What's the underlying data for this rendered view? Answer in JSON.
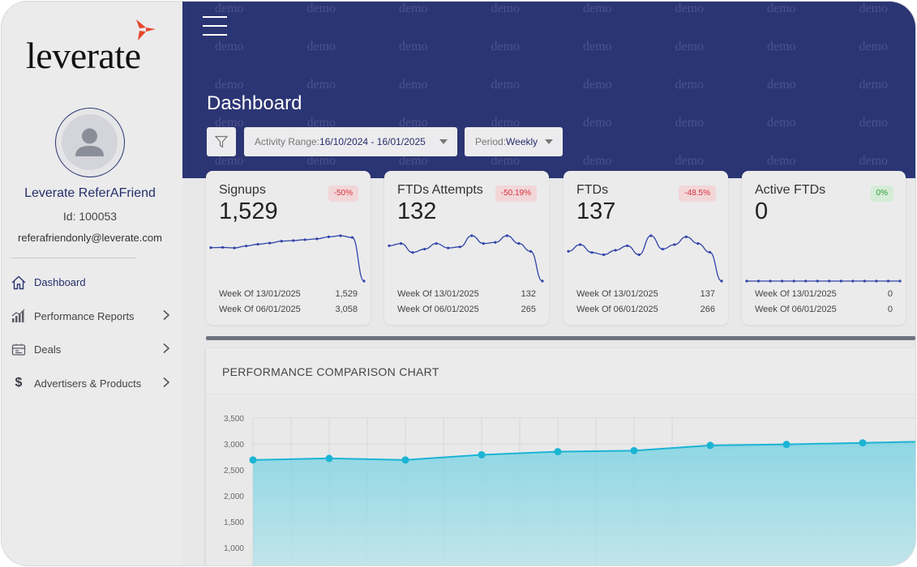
{
  "brand": {
    "logo_text": "leverate",
    "logo_accent": "#e8452c"
  },
  "user": {
    "name": "Leverate ReferAFriend",
    "id_text": "Id: 100053",
    "email": "referafriendonly@leverate.com"
  },
  "nav": {
    "items": [
      {
        "label": "Dashboard",
        "icon": "home-icon",
        "active": true,
        "has_chevron": false
      },
      {
        "label": "Performance Reports",
        "icon": "bar-chart-icon",
        "active": false,
        "has_chevron": true
      },
      {
        "label": "Deals",
        "icon": "deals-icon",
        "active": false,
        "has_chevron": true
      },
      {
        "label": "Advertisers & Products",
        "icon": "dollar-icon",
        "active": false,
        "has_chevron": true
      }
    ]
  },
  "header": {
    "title": "Dashboard",
    "watermark": "demo",
    "activity_range": {
      "label": "Activity Range:",
      "value": "16/10/2024 - 16/01/2025"
    },
    "period": {
      "label": "Period:",
      "value": "Weekly"
    },
    "bg_color": "#2c3574"
  },
  "cards": [
    {
      "title": "Signups",
      "value": "1,529",
      "badge": "-50%",
      "badge_status": "negative",
      "rows": [
        {
          "label": "Week Of 13/01/2025",
          "value": "1,529"
        },
        {
          "label": "Week Of 06/01/2025",
          "value": "3,058"
        }
      ],
      "spark": [
        2700,
        2710,
        2690,
        2760,
        2820,
        2860,
        2930,
        2950,
        2980,
        3010,
        3080,
        3120,
        3058,
        1529
      ]
    },
    {
      "title": "FTDs Attempts",
      "value": "132",
      "badge": "-50.19%",
      "badge_status": "negative",
      "rows": [
        {
          "label": "Week Of 13/01/2025",
          "value": "132"
        },
        {
          "label": "Week Of 06/01/2025",
          "value": "265"
        }
      ],
      "spark": [
        290,
        300,
        260,
        275,
        300,
        280,
        285,
        335,
        300,
        305,
        335,
        300,
        265,
        132
      ]
    },
    {
      "title": "FTDs",
      "value": "137",
      "badge": "-48.5%",
      "badge_status": "negative",
      "rows": [
        {
          "label": "Week Of 13/01/2025",
          "value": "137"
        },
        {
          "label": "Week Of 06/01/2025",
          "value": "266"
        }
      ],
      "spark": [
        270,
        300,
        265,
        255,
        275,
        295,
        255,
        340,
        280,
        300,
        335,
        305,
        266,
        137
      ]
    },
    {
      "title": "Active FTDs",
      "value": "0",
      "badge": "0%",
      "badge_status": "neutral",
      "rows": [
        {
          "label": "Week Of 13/01/2025",
          "value": "0"
        },
        {
          "label": "Week Of 06/01/2025",
          "value": "0"
        }
      ],
      "spark": [
        0,
        0,
        0,
        0,
        0,
        0,
        0,
        0,
        0,
        0,
        0,
        0,
        0,
        0
      ]
    }
  ],
  "comparison_panel": {
    "title": "PERFORMANCE COMPARISON CHART"
  },
  "chart_data": {
    "type": "area",
    "title": "PERFORMANCE COMPARISON CHART",
    "y_ticks": [
      "3,500",
      "3,000",
      "2,500",
      "2,000",
      "1,500",
      "1,000"
    ],
    "ylim": [
      1000,
      3500
    ],
    "values": [
      2690,
      2720,
      2690,
      2790,
      2850,
      2870,
      2970,
      2990,
      3020,
      3050
    ],
    "color": "#1bb4d4",
    "grid": true
  }
}
